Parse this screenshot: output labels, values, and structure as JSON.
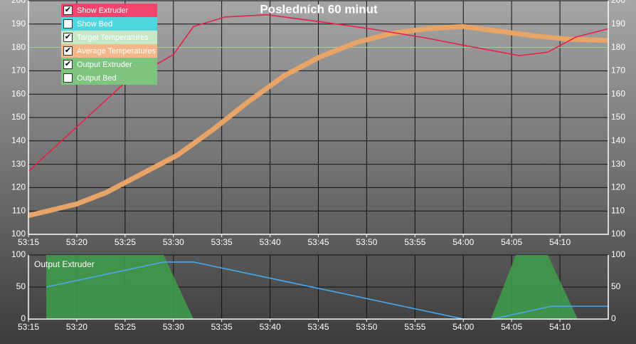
{
  "chart_data": [
    {
      "type": "line",
      "title": "Posledních 60 minut",
      "xlim": [
        53.25,
        54.25
      ],
      "xticks": [
        {
          "value": 53.25,
          "label": "53:15"
        },
        {
          "value": 53.3333,
          "label": "53:20"
        },
        {
          "value": 53.4167,
          "label": "53:25"
        },
        {
          "value": 53.5,
          "label": "53:30"
        },
        {
          "value": 53.5833,
          "label": "53:35"
        },
        {
          "value": 53.6667,
          "label": "53:40"
        },
        {
          "value": 53.75,
          "label": "53:45"
        },
        {
          "value": 53.8333,
          "label": "53:50"
        },
        {
          "value": 53.9167,
          "label": "53:55"
        },
        {
          "value": 54.0,
          "label": "54:00"
        },
        {
          "value": 54.0833,
          "label": "54:05"
        },
        {
          "value": 54.1667,
          "label": "54:10"
        }
      ],
      "ylim": [
        100,
        200
      ],
      "yticks": [
        100,
        110,
        120,
        130,
        140,
        150,
        160,
        170,
        180,
        190,
        200
      ],
      "grid": true,
      "legend": [
        {
          "label": "Show Extruder",
          "color": "#f2456e",
          "checked": true
        },
        {
          "label": "Show Bed",
          "color": "#4fd6de",
          "checked": false
        },
        {
          "label": "Target Temperatures",
          "color": "#c6e8c6",
          "checked": true
        },
        {
          "label": "Average Temperatures",
          "color": "#f3b78a",
          "checked": true
        },
        {
          "label": "Output Extruder",
          "color": "#7ec47e",
          "checked": true
        },
        {
          "label": "Output Bed",
          "color": "#7ec47e",
          "checked": false
        }
      ],
      "series": [
        {
          "color": "#b8e8a8",
          "line_width": 1,
          "x": [
            53.25,
            54.25
          ],
          "values": [
            180,
            180
          ]
        },
        {
          "color": "#e8a467",
          "line_width": 7,
          "x": [
            53.25,
            53.3334,
            53.385,
            53.4463,
            53.5077,
            53.569,
            53.6304,
            53.6917,
            53.7531,
            53.8144,
            53.8758,
            53.9371,
            53.9985,
            54.0598,
            54.1212,
            54.1825,
            54.25
          ],
          "values": [
            108,
            113,
            118,
            126,
            134,
            145,
            157,
            168,
            176,
            182,
            186,
            188,
            189,
            187,
            185,
            183.5,
            183
          ]
        },
        {
          "color": "#e8204a",
          "line_width": 1.6,
          "x": [
            53.25,
            53.3334,
            53.4169,
            53.5003,
            53.5347,
            53.5887,
            53.661,
            53.7531,
            53.839,
            53.9371,
            53.9985,
            54.0966,
            54.1457,
            54.1948,
            54.25
          ],
          "values": [
            127,
            146,
            165,
            177,
            189,
            193,
            194,
            191,
            188,
            184,
            181,
            176.5,
            178,
            184.5,
            188
          ]
        }
      ]
    },
    {
      "type": "line",
      "title": "Output Extruder",
      "xlim": [
        53.25,
        54.25
      ],
      "xticks": [
        {
          "value": 53.25,
          "label": "53:15"
        },
        {
          "value": 53.3333,
          "label": "53:20"
        },
        {
          "value": 53.4167,
          "label": "53:25"
        },
        {
          "value": 53.5,
          "label": "53:30"
        },
        {
          "value": 53.5833,
          "label": "53:35"
        },
        {
          "value": 53.6667,
          "label": "53:40"
        },
        {
          "value": 53.75,
          "label": "53:45"
        },
        {
          "value": 53.8333,
          "label": "53:50"
        },
        {
          "value": 53.9167,
          "label": "53:55"
        },
        {
          "value": 54.0,
          "label": "54:00"
        },
        {
          "value": 54.0833,
          "label": "54:05"
        },
        {
          "value": 54.1667,
          "label": "54:10"
        }
      ],
      "ylim": [
        0,
        100
      ],
      "yticks": [
        0,
        50,
        100
      ],
      "grid": true,
      "series": [
        {
          "color": "#3f9a4a",
          "fill": true,
          "x": [
            53.2807,
            53.2807,
            53.4831,
            53.5347,
            54.0476,
            54.0905,
            54.1457,
            54.1973
          ],
          "values": [
            0,
            100,
            100,
            0,
            0,
            100,
            100,
            0
          ]
        },
        {
          "color": "#4aa8f0",
          "line_width": 1.6,
          "x": [
            53.2807,
            53.4831,
            53.5347,
            54.0009,
            54.05,
            54.1518,
            54.25
          ],
          "values": [
            50,
            89,
            89,
            0,
            0,
            20,
            20
          ]
        }
      ]
    }
  ]
}
